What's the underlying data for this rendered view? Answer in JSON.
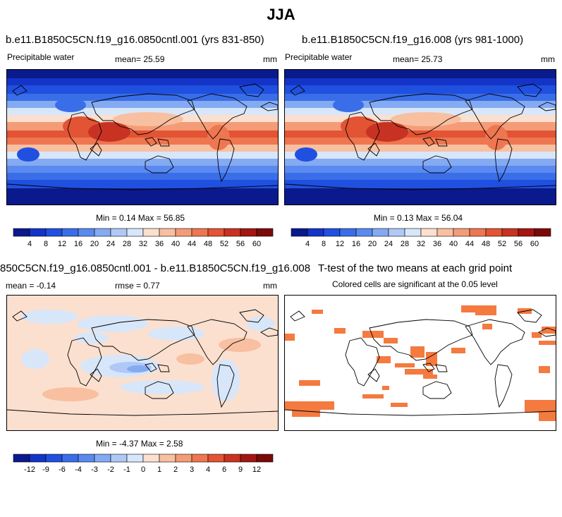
{
  "page_title": "JJA",
  "panels": {
    "p1": {
      "title": "b.e11.B1850C5CN.f19_g16.0850cntl.001 (yrs 831-850)",
      "left_label": "Precipitable water",
      "mean_text": "mean=  25.59",
      "units": "mm",
      "minmax_text": "Min =  0.14 Max =  56.85"
    },
    "p2": {
      "title": "b.e11.B1850C5CN.f19_g16.008 (yrs 981-1000)",
      "left_label": "Precipitable water",
      "mean_text": "mean=  25.73",
      "units": "mm",
      "minmax_text": "Min =  0.13 Max =  56.04"
    },
    "p3": {
      "title": "850C5CN.f19_g16.0850cntl.001 - b.e11.B1850C5CN.f19_g16.008",
      "mean_text": "mean =  -0.14",
      "rmse_text": "rmse =   0.77",
      "units": "mm",
      "minmax_text": "Min =  -4.37 Max =   2.58"
    },
    "p4": {
      "title": "T-test of the two means at each grid point",
      "subtitle": "Colored cells are significant at the 0.05 level"
    }
  },
  "chart_data": [
    {
      "type": "heatmap",
      "variable": "Precipitable water",
      "units": "mm",
      "mean": 25.59,
      "min": 0.14,
      "max": 56.85,
      "colorbar_levels": [
        4,
        8,
        12,
        16,
        20,
        24,
        28,
        32,
        36,
        40,
        44,
        48,
        52,
        56,
        60
      ],
      "colorbar_labels": [
        "4",
        "8",
        "12",
        "16",
        "20",
        "24",
        "28",
        "32",
        "36",
        "40",
        "44",
        "48",
        "52",
        "56",
        "60"
      ],
      "colorbar_colors": [
        "#0a1a8c",
        "#1434c8",
        "#2050e0",
        "#3a6ee8",
        "#5a8af0",
        "#84aaf2",
        "#b0c8f6",
        "#d8e6fa",
        "#fbe0cf",
        "#f8bfa0",
        "#f49c78",
        "#ee7650",
        "#e25434",
        "#c83222",
        "#a31612",
        "#7a0a08"
      ]
    },
    {
      "type": "heatmap",
      "variable": "Precipitable water",
      "units": "mm",
      "mean": 25.73,
      "min": 0.13,
      "max": 56.04,
      "colorbar_levels": [
        4,
        8,
        12,
        16,
        20,
        24,
        28,
        32,
        36,
        40,
        44,
        48,
        52,
        56,
        60
      ],
      "colorbar_labels": [
        "4",
        "8",
        "12",
        "16",
        "20",
        "24",
        "28",
        "32",
        "36",
        "40",
        "44",
        "48",
        "52",
        "56",
        "60"
      ],
      "colorbar_colors": [
        "#0a1a8c",
        "#1434c8",
        "#2050e0",
        "#3a6ee8",
        "#5a8af0",
        "#84aaf2",
        "#b0c8f6",
        "#d8e6fa",
        "#fbe0cf",
        "#f8bfa0",
        "#f49c78",
        "#ee7650",
        "#e25434",
        "#c83222",
        "#a31612",
        "#7a0a08"
      ]
    },
    {
      "type": "heatmap",
      "variable": "difference",
      "units": "mm",
      "mean": -0.14,
      "rmse": 0.77,
      "min": -4.37,
      "max": 2.58,
      "colorbar_levels": [
        -12,
        -9,
        -6,
        -4,
        -3,
        -2,
        -1,
        0,
        1,
        2,
        3,
        4,
        6,
        9,
        12
      ],
      "colorbar_labels": [
        "-12",
        "-9",
        "-6",
        "-4",
        "-3",
        "-2",
        "-1",
        "0",
        "1",
        "2",
        "3",
        "4",
        "6",
        "9",
        "12"
      ],
      "colorbar_colors": [
        "#0a1a8c",
        "#1434c8",
        "#2050e0",
        "#3a6ee8",
        "#5a8af0",
        "#84aaf2",
        "#b0c8f6",
        "#d8e6fa",
        "#fbe0cf",
        "#f8bfa0",
        "#f49c78",
        "#ee7650",
        "#e25434",
        "#c83222",
        "#a31612",
        "#7a0a08"
      ]
    },
    {
      "type": "heatmap",
      "variable": "T-test significance",
      "significance_level": 0.05,
      "significant_color": "#f47a40"
    }
  ]
}
